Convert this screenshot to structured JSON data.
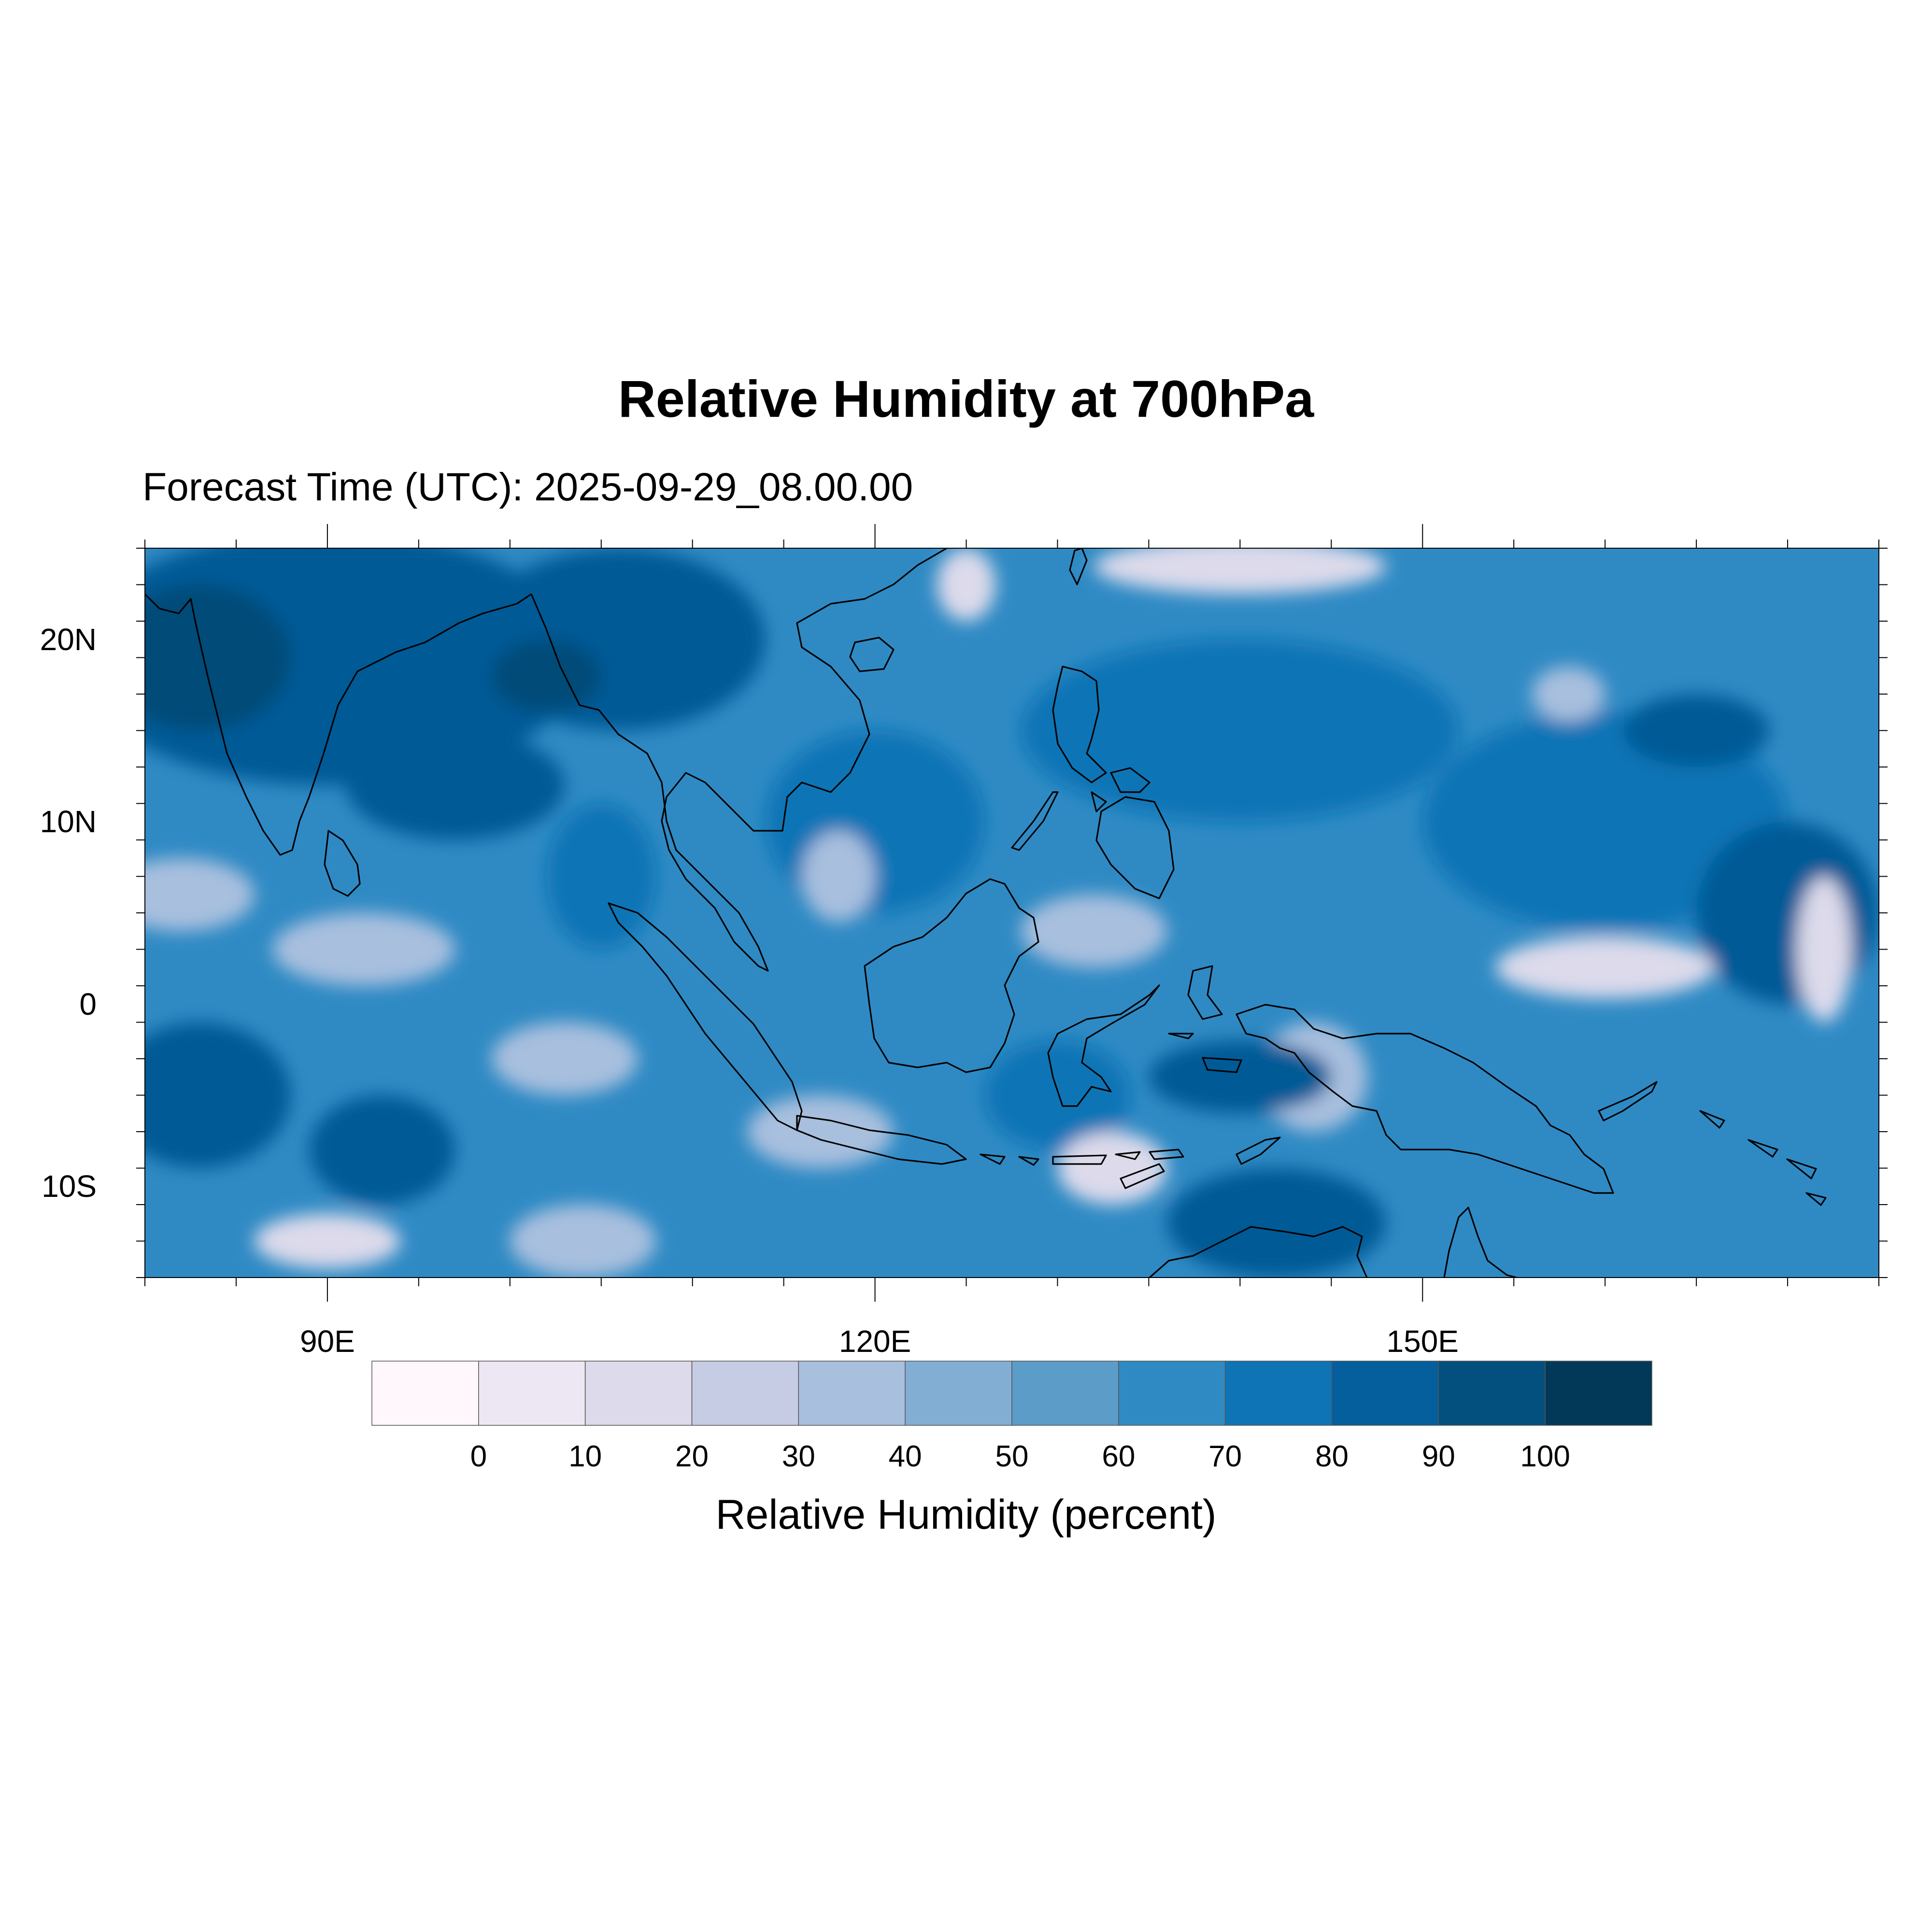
{
  "title": "Relative Humidity at 700hPa",
  "subtitle": "Forecast Time (UTC): 2025-09-29_08.00.00",
  "map": {
    "region": "Maritime Continent / Southeast Asia",
    "lon_range": [
      80,
      175
    ],
    "lat_range": [
      -15,
      25
    ],
    "lat_ticks": [
      {
        "value": 20,
        "label": "20N"
      },
      {
        "value": 10,
        "label": "10N"
      },
      {
        "value": 0,
        "label": "0"
      },
      {
        "value": -10,
        "label": "10S"
      }
    ],
    "lon_ticks": [
      {
        "value": 90,
        "label": "90E"
      },
      {
        "value": 120,
        "label": "120E"
      },
      {
        "value": 150,
        "label": "150E"
      }
    ],
    "field_colors": {
      "background_ocean": "#2f8ac4",
      "moist": "#0e74b6",
      "very_moist": "#055a96",
      "saturated": "#034b78",
      "dry": "#a8bfde",
      "very_dry": "#dcdaeb",
      "coastline": "#000000"
    }
  },
  "colorbar": {
    "title": "Relative Humidity (percent)",
    "labels": [
      "0",
      "10",
      "20",
      "30",
      "40",
      "50",
      "60",
      "70",
      "80",
      "90",
      "100"
    ],
    "colors": [
      "#fff7fb",
      "#ece7f2",
      "#dcdaeb",
      "#c6cce3",
      "#a8bfde",
      "#83aed4",
      "#5c9cc9",
      "#2f8ac4",
      "#0e74b6",
      "#055f9d",
      "#03507f",
      "#023858"
    ]
  }
}
